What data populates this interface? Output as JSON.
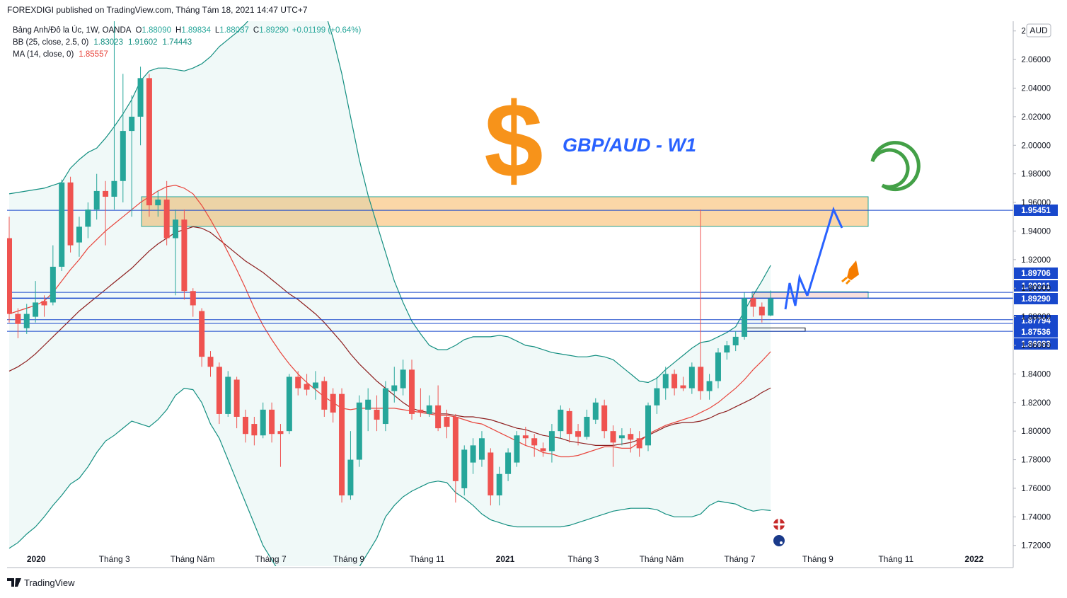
{
  "chart_data": {
    "type": "candlestick",
    "header": "FOREXDIGI published on TradingView.com, Tháng Tám 18, 2021 14:47 UTC+7",
    "legend": {
      "symbol": "Bảng Anh/Đô la Úc, 1W, OANDA",
      "ohlc": [
        {
          "key": "O",
          "text": "1.88090"
        },
        {
          "key": "H",
          "text": "1.89834"
        },
        {
          "key": "L",
          "text": "1.88037"
        },
        {
          "key": "C",
          "text": "1.89290"
        }
      ],
      "change": "+0.01199 (+0.64%)"
    },
    "indicators": [
      {
        "name": "BB (25, close, 2.5, 0)",
        "texts": [
          "1.83023",
          "1.91602",
          "1.74443"
        ],
        "color": "#138f81"
      },
      {
        "name": "MA (14, close, 0)",
        "texts": [
          "1.85557"
        ],
        "color": "#e8453c"
      }
    ],
    "annotation": "GBP/AUD - W1",
    "symbol_glyph": "$",
    "currency": "AUD",
    "footer": "TradingView",
    "up_color": "#26a69a",
    "down_color": "#ef5350",
    "candles": [
      [
        1.935,
        1.95,
        1.876,
        1.882
      ],
      [
        1.882,
        1.886,
        1.865,
        1.875
      ],
      [
        1.872,
        1.889,
        1.868,
        1.882
      ],
      [
        1.88,
        1.905,
        1.876,
        1.89
      ],
      [
        1.891,
        1.895,
        1.88,
        1.888
      ],
      [
        1.89,
        1.93,
        1.888,
        1.915
      ],
      [
        1.915,
        1.976,
        1.912,
        1.974
      ],
      [
        1.974,
        1.978,
        1.925,
        1.93
      ],
      [
        1.932,
        1.95,
        1.922,
        1.943
      ],
      [
        1.943,
        1.96,
        1.935,
        1.955
      ],
      [
        1.955,
        1.98,
        1.948,
        1.968
      ],
      [
        1.968,
        1.975,
        1.93,
        1.964
      ],
      [
        1.964,
        2.09,
        1.955,
        1.975
      ],
      [
        1.975,
        2.05,
        1.96,
        2.01
      ],
      [
        2.01,
        2.035,
        1.95,
        2.02
      ],
      [
        2.02,
        2.055,
        2.0,
        2.047
      ],
      [
        2.047,
        2.05,
        1.95,
        1.958
      ],
      [
        1.958,
        1.968,
        1.95,
        1.962
      ],
      [
        1.962,
        1.975,
        1.93,
        1.935
      ],
      [
        1.935,
        1.955,
        1.895,
        1.948
      ],
      [
        1.948,
        1.955,
        1.892,
        1.898
      ],
      [
        1.898,
        1.9,
        1.88,
        1.888
      ],
      [
        1.884,
        1.886,
        1.845,
        1.852
      ],
      [
        1.852,
        1.856,
        1.838,
        1.845
      ],
      [
        1.845,
        1.848,
        1.805,
        1.812
      ],
      [
        1.812,
        1.842,
        1.81,
        1.838
      ],
      [
        1.836,
        1.838,
        1.802,
        1.81
      ],
      [
        1.81,
        1.815,
        1.792,
        1.798
      ],
      [
        1.805,
        1.81,
        1.79,
        1.797
      ],
      [
        1.797,
        1.82,
        1.795,
        1.815
      ],
      [
        1.815,
        1.82,
        1.792,
        1.798
      ],
      [
        1.8,
        1.805,
        1.775,
        1.798
      ],
      [
        1.8,
        1.84,
        1.798,
        1.838
      ],
      [
        1.838,
        1.842,
        1.825,
        1.83
      ],
      [
        1.833,
        1.84,
        1.825,
        1.829
      ],
      [
        1.83,
        1.842,
        1.822,
        1.834
      ],
      [
        1.835,
        1.838,
        1.81,
        1.815
      ],
      [
        1.826,
        1.83,
        1.806,
        1.813
      ],
      [
        1.826,
        1.83,
        1.75,
        1.755
      ],
      [
        1.755,
        1.8,
        1.752,
        1.78
      ],
      [
        1.78,
        1.825,
        1.775,
        1.82
      ],
      [
        1.815,
        1.83,
        1.8,
        1.822
      ],
      [
        1.815,
        1.825,
        1.8,
        1.808
      ],
      [
        1.805,
        1.835,
        1.8,
        1.83
      ],
      [
        1.828,
        1.845,
        1.82,
        1.832
      ],
      [
        1.83,
        1.85,
        1.825,
        1.843
      ],
      [
        1.843,
        1.85,
        1.808,
        1.812
      ],
      [
        1.815,
        1.83,
        1.81,
        1.813
      ],
      [
        1.812,
        1.825,
        1.81,
        1.818
      ],
      [
        1.818,
        1.832,
        1.8,
        1.802
      ],
      [
        1.81,
        1.815,
        1.795,
        1.803
      ],
      [
        1.81,
        1.812,
        1.75,
        1.765
      ],
      [
        1.76,
        1.79,
        1.755,
        1.787
      ],
      [
        1.778,
        1.795,
        1.77,
        1.79
      ],
      [
        1.78,
        1.8,
        1.775,
        1.795
      ],
      [
        1.785,
        1.788,
        1.748,
        1.755
      ],
      [
        1.755,
        1.775,
        1.748,
        1.77
      ],
      [
        1.77,
        1.788,
        1.765,
        1.785
      ],
      [
        1.778,
        1.8,
        1.775,
        1.797
      ],
      [
        1.797,
        1.803,
        1.79,
        1.795
      ],
      [
        1.795,
        1.798,
        1.782,
        1.79
      ],
      [
        1.788,
        1.792,
        1.782,
        1.786
      ],
      [
        1.786,
        1.805,
        1.778,
        1.8
      ],
      [
        1.8,
        1.818,
        1.795,
        1.815
      ],
      [
        1.814,
        1.816,
        1.792,
        1.798
      ],
      [
        1.8,
        1.805,
        1.79,
        1.796
      ],
      [
        1.796,
        1.815,
        1.794,
        1.81
      ],
      [
        1.808,
        1.823,
        1.805,
        1.82
      ],
      [
        1.818,
        1.822,
        1.795,
        1.8
      ],
      [
        1.8,
        1.804,
        1.775,
        1.792
      ],
      [
        1.795,
        1.802,
        1.79,
        1.797
      ],
      [
        1.798,
        1.802,
        1.785,
        1.794
      ],
      [
        1.795,
        1.8,
        1.782,
        1.788
      ],
      [
        1.79,
        1.82,
        1.786,
        1.818
      ],
      [
        1.818,
        1.838,
        1.812,
        1.83
      ],
      [
        1.83,
        1.845,
        1.822,
        1.84
      ],
      [
        1.84,
        1.843,
        1.825,
        1.83
      ],
      [
        1.832,
        1.838,
        1.828,
        1.83
      ],
      [
        1.83,
        1.848,
        1.826,
        1.845
      ],
      [
        1.845,
        1.955,
        1.822,
        1.828
      ],
      [
        1.828,
        1.84,
        1.822,
        1.835
      ],
      [
        1.835,
        1.858,
        1.83,
        1.855
      ],
      [
        1.855,
        1.863,
        1.85,
        1.86
      ],
      [
        1.86,
        1.87,
        1.856,
        1.866
      ],
      [
        1.866,
        1.897,
        1.864,
        1.893
      ],
      [
        1.893,
        1.896,
        1.88,
        1.887
      ],
      [
        1.887,
        1.89,
        1.876,
        1.881
      ],
      [
        1.8809,
        1.89834,
        1.88037,
        1.8929
      ]
    ],
    "bb_upper": {
      "color": "#138f81",
      "values": [
        1.966,
        1.967,
        1.968,
        1.969,
        1.97,
        1.972,
        1.974,
        1.984,
        1.99,
        1.995,
        1.998,
        2.005,
        2.013,
        2.022,
        2.032,
        2.045,
        2.052,
        2.054,
        2.054,
        2.053,
        2.052,
        2.054,
        2.057,
        2.062,
        2.069,
        2.074,
        2.079,
        2.085,
        2.092,
        2.098,
        2.104,
        2.11,
        2.115,
        2.118,
        2.12,
        2.115,
        2.095,
        2.075,
        2.05,
        2.02,
        1.99,
        1.965,
        1.945,
        1.925,
        1.905,
        1.89,
        1.877,
        1.868,
        1.86,
        1.857,
        1.857,
        1.86,
        1.864,
        1.866,
        1.866,
        1.866,
        1.867,
        1.866,
        1.863,
        1.86,
        1.859,
        1.857,
        1.855,
        1.854,
        1.853,
        1.852,
        1.852,
        1.853,
        1.852,
        1.85,
        1.845,
        1.84,
        1.835,
        1.834,
        1.837,
        1.843,
        1.848,
        1.853,
        1.858,
        1.862,
        1.863,
        1.866,
        1.869,
        1.873,
        1.884,
        1.895,
        1.905,
        1.91602
      ]
    },
    "bb_lower": {
      "color": "#138f81",
      "values": [
        1.718,
        1.722,
        1.728,
        1.733,
        1.74,
        1.748,
        1.755,
        1.763,
        1.767,
        1.775,
        1.785,
        1.793,
        1.797,
        1.802,
        1.807,
        1.805,
        1.803,
        1.808,
        1.815,
        1.825,
        1.83,
        1.829,
        1.82,
        1.805,
        1.795,
        1.78,
        1.765,
        1.75,
        1.735,
        1.72,
        1.71,
        1.7,
        1.69,
        1.685,
        1.68,
        1.68,
        1.685,
        1.69,
        1.695,
        1.7,
        1.705,
        1.715,
        1.725,
        1.74,
        1.748,
        1.754,
        1.758,
        1.761,
        1.764,
        1.765,
        1.764,
        1.757,
        1.753,
        1.748,
        1.742,
        1.738,
        1.736,
        1.734,
        1.733,
        1.733,
        1.733,
        1.733,
        1.733,
        1.733,
        1.734,
        1.736,
        1.738,
        1.74,
        1.742,
        1.744,
        1.745,
        1.746,
        1.746,
        1.746,
        1.745,
        1.742,
        1.74,
        1.74,
        1.74,
        1.742,
        1.748,
        1.751,
        1.75,
        1.749,
        1.746,
        1.744,
        1.745,
        1.74443
      ]
    },
    "bb_basis": {
      "color": "#8e1f1f",
      "values": [
        1.842,
        1.845,
        1.849,
        1.854,
        1.86,
        1.866,
        1.872,
        1.878,
        1.884,
        1.889,
        1.894,
        1.899,
        1.904,
        1.909,
        1.914,
        1.92,
        1.926,
        1.931,
        1.935,
        1.939,
        1.941,
        1.943,
        1.942,
        1.939,
        1.934,
        1.929,
        1.924,
        1.919,
        1.915,
        1.911,
        1.906,
        1.901,
        1.896,
        1.892,
        1.887,
        1.882,
        1.876,
        1.869,
        1.862,
        1.854,
        1.847,
        1.841,
        1.835,
        1.83,
        1.825,
        1.82,
        1.816,
        1.814,
        1.813,
        1.812,
        1.812,
        1.811,
        1.81,
        1.81,
        1.809,
        1.808,
        1.806,
        1.804,
        1.802,
        1.801,
        1.799,
        1.797,
        1.796,
        1.795,
        1.793,
        1.792,
        1.791,
        1.79,
        1.79,
        1.79,
        1.791,
        1.792,
        1.794,
        1.797,
        1.8,
        1.803,
        1.805,
        1.806,
        1.806,
        1.807,
        1.809,
        1.812,
        1.814,
        1.817,
        1.82,
        1.823,
        1.827,
        1.83023
      ]
    },
    "ma": {
      "color": "#e8453c",
      "values": [
        1.882,
        1.884,
        1.886,
        1.888,
        1.891,
        1.897,
        1.905,
        1.913,
        1.92,
        1.928,
        1.934,
        1.94,
        1.945,
        1.95,
        1.955,
        1.96,
        1.964,
        1.968,
        1.971,
        1.972,
        1.97,
        1.966,
        1.958,
        1.948,
        1.937,
        1.925,
        1.913,
        1.9,
        1.886,
        1.874,
        1.864,
        1.855,
        1.847,
        1.84,
        1.834,
        1.829,
        1.824,
        1.82,
        1.816,
        1.815,
        1.816,
        1.816,
        1.816,
        1.816,
        1.816,
        1.815,
        1.814,
        1.813,
        1.812,
        1.811,
        1.811,
        1.81,
        1.808,
        1.806,
        1.805,
        1.802,
        1.799,
        1.796,
        1.793,
        1.79,
        1.788,
        1.785,
        1.784,
        1.782,
        1.782,
        1.783,
        1.785,
        1.787,
        1.789,
        1.789,
        1.788,
        1.788,
        1.792,
        1.798,
        1.801,
        1.804,
        1.806,
        1.808,
        1.81,
        1.813,
        1.816,
        1.82,
        1.825,
        1.83,
        1.836,
        1.843,
        1.849,
        1.85557
      ]
    },
    "ylim": [
      1.7055,
      2.0868
    ],
    "yticks": [
      {
        "value": 1.72,
        "label": "1.72000"
      },
      {
        "value": 1.74,
        "label": "1.74000"
      },
      {
        "value": 1.76,
        "label": "1.76000"
      },
      {
        "value": 1.78,
        "label": "1.78000"
      },
      {
        "value": 1.8,
        "label": "1.80000"
      },
      {
        "value": 1.82,
        "label": "1.82000"
      },
      {
        "value": 1.84,
        "label": "1.84000"
      },
      {
        "value": 1.86,
        "label": "1.86000"
      },
      {
        "value": 1.88,
        "label": "1.88000"
      },
      {
        "value": 1.9,
        "label": "1.90000"
      },
      {
        "value": 1.92,
        "label": "1.92000"
      },
      {
        "value": 1.94,
        "label": "1.94000"
      },
      {
        "value": 1.96,
        "label": "1.96000"
      },
      {
        "value": 1.98,
        "label": "1.98000"
      },
      {
        "value": 2.0,
        "label": "2.00000"
      },
      {
        "value": 2.02,
        "label": "2.02000"
      },
      {
        "value": 2.04,
        "label": "2.04000"
      },
      {
        "value": 2.06,
        "label": "2.06000"
      },
      {
        "value": 2.08,
        "label": "2.08000"
      }
    ],
    "xlim": [
      "2019-12",
      "2022-02"
    ],
    "xticks": [
      {
        "value": "2020-01",
        "label": "2020"
      },
      {
        "value": "2020-03",
        "label": "Tháng 3"
      },
      {
        "value": "2020-05",
        "label": "Tháng Năm"
      },
      {
        "value": "2020-07",
        "label": "Tháng 7"
      },
      {
        "value": "2020-09",
        "label": "Tháng 9"
      },
      {
        "value": "2020-11",
        "label": "Tháng 11"
      },
      {
        "value": "2021-01",
        "label": "2021"
      },
      {
        "value": "2021-03",
        "label": "Tháng 3"
      },
      {
        "value": "2021-05",
        "label": "Tháng Năm"
      },
      {
        "value": "2021-07",
        "label": "Tháng 7"
      },
      {
        "value": "2021-09",
        "label": "Tháng 9"
      },
      {
        "value": "2021-11",
        "label": "Tháng 11"
      },
      {
        "value": "2022-01",
        "label": "2022"
      }
    ],
    "price_lines": [
      1.95451,
      {
        "value": 1.89706,
        "label": "1.89706"
      },
      1.89311,
      {
        "value": 1.8929,
        "label": "1.89290"
      },
      1.87794,
      1.87536,
      1.86983
    ],
    "price_line_color": "#1848cc",
    "zones": [
      {
        "low": 1.9432,
        "high": 1.964,
        "color": "#f9c98a"
      },
      {
        "low": 1.893,
        "high": 1.8975,
        "color": "#f6d5d2"
      },
      {
        "low": 1.8698,
        "high": 1.8722,
        "color": "#ffffff"
      }
    ],
    "grid": false
  }
}
